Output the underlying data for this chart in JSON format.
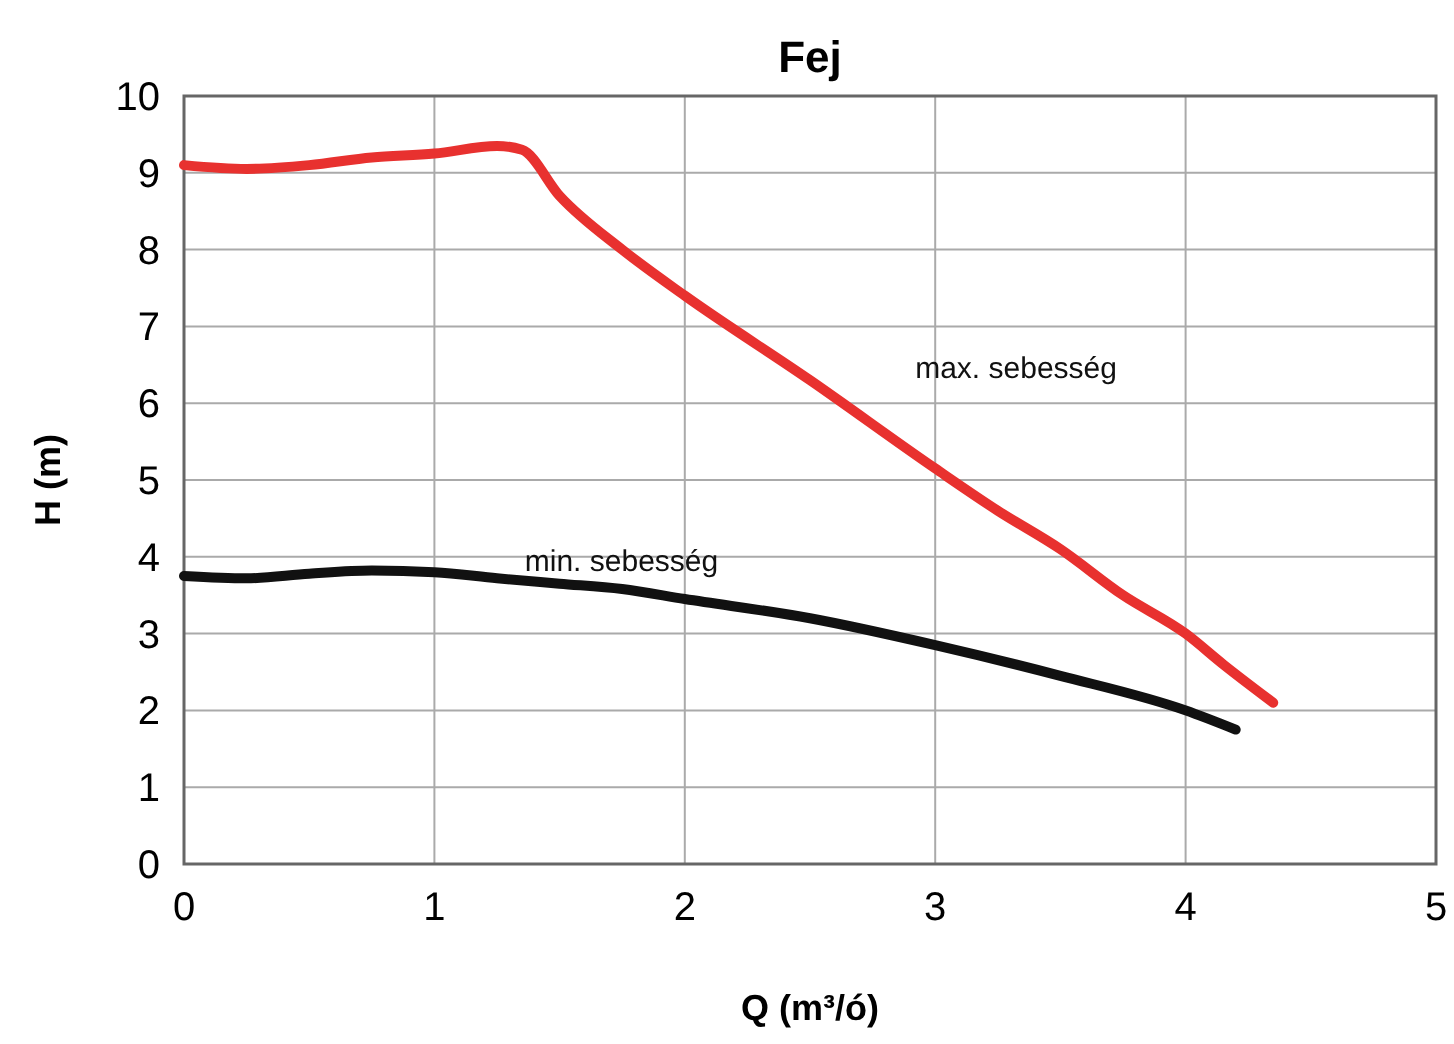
{
  "chart_data": {
    "type": "line",
    "title": "Fej",
    "xlabel": "Q (m³/ó)",
    "ylabel": "H (m)",
    "xlim": [
      0,
      5
    ],
    "xticks": [
      0,
      1,
      2,
      3,
      4,
      5
    ],
    "ylim": [
      0,
      10
    ],
    "yticks": [
      0,
      1,
      2,
      3,
      4,
      5,
      6,
      7,
      8,
      9,
      10
    ],
    "grid": true,
    "marker": "none",
    "line_style": "solid",
    "series": [
      {
        "name": "max. sebesség",
        "color": "#e8312f",
        "x": [
          0,
          0.25,
          0.5,
          0.75,
          1.0,
          1.25,
          1.35,
          1.5,
          1.75,
          2.0,
          2.5,
          3.0,
          3.25,
          3.5,
          3.75,
          4.0,
          4.15,
          4.35
        ],
        "values": [
          9.1,
          9.05,
          9.1,
          9.2,
          9.25,
          9.35,
          9.3,
          8.7,
          8.0,
          7.4,
          6.3,
          5.15,
          4.6,
          4.1,
          3.5,
          3.0,
          2.6,
          2.1
        ]
      },
      {
        "name": "min. sebesség",
        "color": "#111111",
        "x": [
          0,
          0.25,
          0.5,
          0.75,
          1.0,
          1.25,
          1.5,
          1.75,
          2.0,
          2.5,
          3.0,
          3.5,
          4.0,
          4.2
        ],
        "values": [
          3.75,
          3.72,
          3.78,
          3.82,
          3.8,
          3.72,
          3.65,
          3.58,
          3.45,
          3.2,
          2.85,
          2.45,
          2.0,
          1.75
        ]
      }
    ]
  }
}
